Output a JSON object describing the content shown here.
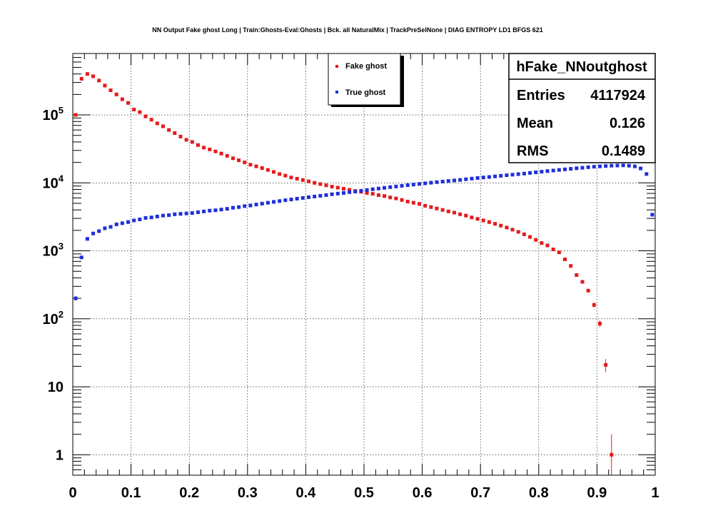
{
  "chart_data": {
    "type": "scatter",
    "title": "NN Output Fake ghost Long | Train:Ghosts-Eval:Ghosts | Bck. all NaturalMix | TrackPreSelNone | DIAG ENTROPY LD1 BFGS 621",
    "xlabel": "",
    "ylabel": "",
    "xlim": [
      0,
      1
    ],
    "ylim": [
      0.5,
      800000
    ],
    "y_scale": "log",
    "grid": true,
    "x_ticks": [
      "0",
      "0.1",
      "0.2",
      "0.3",
      "0.4",
      "0.5",
      "0.6",
      "0.7",
      "0.8",
      "0.9",
      "1"
    ],
    "y_ticks": [
      {
        "value": 1,
        "base": "1",
        "exp": ""
      },
      {
        "value": 10,
        "base": "10",
        "exp": ""
      },
      {
        "value": 100,
        "base": "10",
        "exp": "2"
      },
      {
        "value": 1000,
        "base": "10",
        "exp": "3"
      },
      {
        "value": 10000,
        "base": "10",
        "exp": "4"
      },
      {
        "value": 100000,
        "base": "10",
        "exp": "5"
      }
    ],
    "legend": {
      "placement": "top-center",
      "entries": [
        {
          "name": "Fake ghost",
          "color": "#e41a1c"
        },
        {
          "name": "True ghost",
          "color": "#1f2fd8"
        }
      ]
    },
    "stats": {
      "name": "hFake_NNoutghost",
      "rows": [
        {
          "label": "Entries",
          "value": "4117924"
        },
        {
          "label": "Mean",
          "value": "0.126"
        },
        {
          "label": "RMS",
          "value": "0.1489"
        }
      ]
    },
    "series": [
      {
        "name": "Fake ghost",
        "color": "#e41a1c",
        "x": [
          0.005,
          0.015,
          0.025,
          0.035,
          0.045,
          0.055,
          0.065,
          0.075,
          0.085,
          0.095,
          0.105,
          0.115,
          0.125,
          0.135,
          0.145,
          0.155,
          0.165,
          0.175,
          0.185,
          0.195,
          0.205,
          0.215,
          0.225,
          0.235,
          0.245,
          0.255,
          0.265,
          0.275,
          0.285,
          0.295,
          0.305,
          0.315,
          0.325,
          0.335,
          0.345,
          0.355,
          0.365,
          0.375,
          0.385,
          0.395,
          0.405,
          0.415,
          0.425,
          0.435,
          0.445,
          0.455,
          0.465,
          0.475,
          0.485,
          0.495,
          0.505,
          0.515,
          0.525,
          0.535,
          0.545,
          0.555,
          0.565,
          0.575,
          0.585,
          0.595,
          0.605,
          0.615,
          0.625,
          0.635,
          0.645,
          0.655,
          0.665,
          0.675,
          0.685,
          0.695,
          0.705,
          0.715,
          0.725,
          0.735,
          0.745,
          0.755,
          0.765,
          0.775,
          0.785,
          0.795,
          0.805,
          0.815,
          0.825,
          0.835,
          0.845,
          0.855,
          0.865,
          0.875,
          0.885,
          0.895,
          0.905,
          0.915,
          0.925,
          0.935,
          0.945,
          0.955,
          0.965,
          0.975,
          0.985,
          0.995
        ],
        "values": [
          100000,
          340000,
          400000,
          370000,
          320000,
          270000,
          230000,
          200000,
          170000,
          150000,
          120000,
          110000,
          95000,
          85000,
          75000,
          68000,
          60000,
          54000,
          48000,
          43000,
          40000,
          36000,
          33000,
          31000,
          29000,
          27000,
          25000,
          23000,
          21500,
          20000,
          18500,
          17500,
          16500,
          15500,
          14500,
          13500,
          12800,
          12000,
          11500,
          11000,
          10500,
          10000,
          9600,
          9200,
          8800,
          8500,
          8200,
          7900,
          7600,
          7400,
          7100,
          6900,
          6600,
          6400,
          6100,
          5900,
          5600,
          5300,
          5100,
          4900,
          4600,
          4400,
          4200,
          4000,
          3800,
          3650,
          3450,
          3300,
          3100,
          2950,
          2800,
          2650,
          2500,
          2350,
          2200,
          2050,
          1900,
          1750,
          1600,
          1450,
          1300,
          1200,
          1050,
          950,
          750,
          600,
          440,
          350,
          260,
          160,
          85,
          21,
          1,
          null,
          null,
          null,
          null,
          null,
          null,
          null
        ]
      },
      {
        "name": "True ghost",
        "color": "#1f2fd8",
        "x": [
          0.005,
          0.015,
          0.025,
          0.035,
          0.045,
          0.055,
          0.065,
          0.075,
          0.085,
          0.095,
          0.105,
          0.115,
          0.125,
          0.135,
          0.145,
          0.155,
          0.165,
          0.175,
          0.185,
          0.195,
          0.205,
          0.215,
          0.225,
          0.235,
          0.245,
          0.255,
          0.265,
          0.275,
          0.285,
          0.295,
          0.305,
          0.315,
          0.325,
          0.335,
          0.345,
          0.355,
          0.365,
          0.375,
          0.385,
          0.395,
          0.405,
          0.415,
          0.425,
          0.435,
          0.445,
          0.455,
          0.465,
          0.475,
          0.485,
          0.495,
          0.505,
          0.515,
          0.525,
          0.535,
          0.545,
          0.555,
          0.565,
          0.575,
          0.585,
          0.595,
          0.605,
          0.615,
          0.625,
          0.635,
          0.645,
          0.655,
          0.665,
          0.675,
          0.685,
          0.695,
          0.705,
          0.715,
          0.725,
          0.735,
          0.745,
          0.755,
          0.765,
          0.775,
          0.785,
          0.795,
          0.805,
          0.815,
          0.825,
          0.835,
          0.845,
          0.855,
          0.865,
          0.875,
          0.885,
          0.895,
          0.905,
          0.915,
          0.925,
          0.935,
          0.945,
          0.955,
          0.965,
          0.975,
          0.985,
          0.995
        ],
        "values": [
          200,
          800,
          1500,
          1800,
          1950,
          2150,
          2250,
          2450,
          2550,
          2650,
          2800,
          2900,
          3050,
          3100,
          3200,
          3300,
          3350,
          3450,
          3500,
          3550,
          3600,
          3700,
          3800,
          3900,
          3950,
          4050,
          4150,
          4300,
          4400,
          4550,
          4650,
          4800,
          4950,
          5100,
          5250,
          5400,
          5550,
          5700,
          5850,
          6000,
          6150,
          6300,
          6450,
          6600,
          6800,
          6950,
          7100,
          7300,
          7450,
          7650,
          7850,
          8050,
          8250,
          8450,
          8650,
          8850,
          9050,
          9250,
          9450,
          9650,
          9850,
          10050,
          10250,
          10450,
          10650,
          10850,
          11050,
          11300,
          11550,
          11800,
          12000,
          12200,
          12450,
          12700,
          12950,
          13200,
          13450,
          13700,
          14000,
          14300,
          14600,
          14900,
          15200,
          15500,
          15800,
          16100,
          16400,
          16700,
          17000,
          17300,
          17500,
          17700,
          17900,
          18000,
          18100,
          17900,
          17500,
          16300,
          13500,
          3400
        ]
      }
    ]
  }
}
